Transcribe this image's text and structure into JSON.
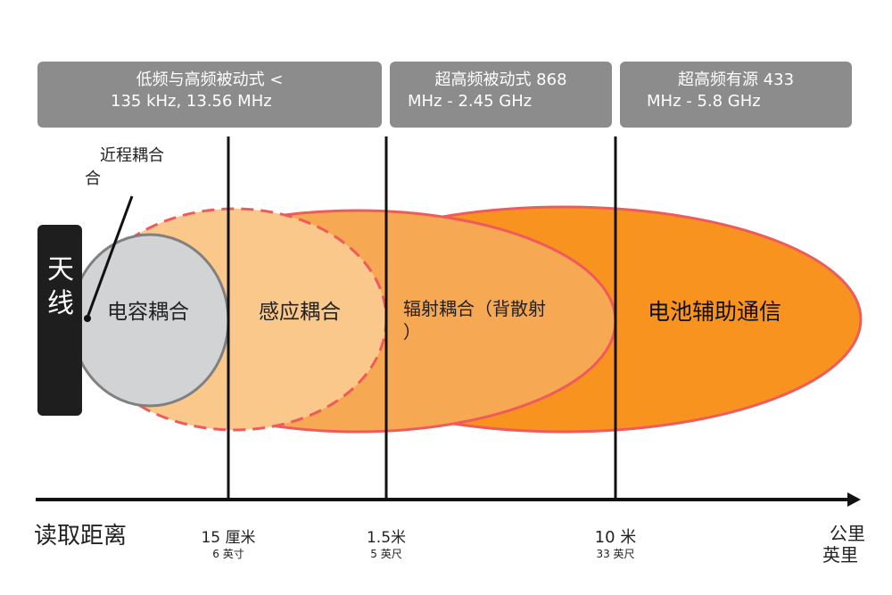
{
  "bands": [
    {
      "line1": "低频与高频被动式 <",
      "line2": "135 kHz, 13.56 MHz"
    },
    {
      "line1": "超高频被动式 868",
      "line2": "MHz - 2.45 GHz"
    },
    {
      "line1": "超高频有源 433",
      "line2": "MHz - 5.8 GHz"
    }
  ],
  "antenna": "天线",
  "proximity": {
    "line1": "近程耦合",
    "line2": "合"
  },
  "regions": {
    "capacitive": "电容耦合",
    "inductive": "感应耦合",
    "radiative_line1": "辐射耦合（背散射",
    "radiative_line2": "）",
    "battery": "电池辅助通信"
  },
  "axis": {
    "title": "读取距离",
    "ticks": [
      {
        "metric": "15 厘米",
        "imperial": "6 英寸"
      },
      {
        "metric": "1.5米",
        "imperial": "5 英尺"
      },
      {
        "metric": "10 米",
        "imperial": "33 英尺"
      }
    ],
    "end_line1": "公里",
    "end_line2": "英里"
  },
  "colors": {
    "battery": "#f7931e",
    "radiative": "#f6a852",
    "inductive": "#f9c88a",
    "capacitive": "#d2d3d5",
    "outline": "#ef5b5b",
    "header": "#8c8c8c"
  }
}
